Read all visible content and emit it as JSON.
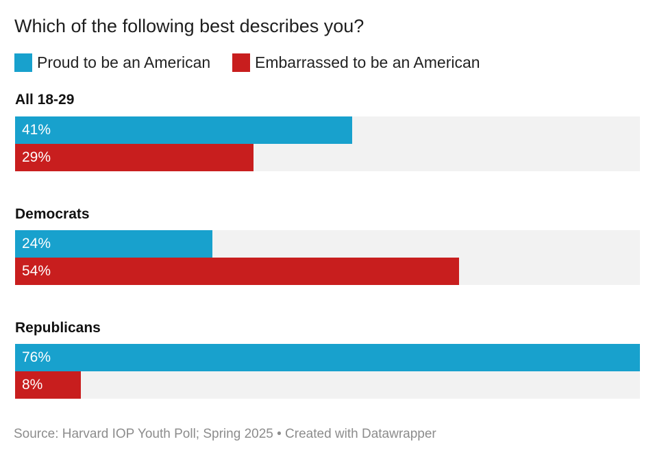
{
  "title": "Which of the following best describes you?",
  "footer": "Source: Harvard IOP Youth Poll; Spring 2025 • Created with Datawrapper",
  "colors": {
    "proud": "#18a1cd",
    "embarrassed": "#c81e1e",
    "track": "#f2f2f2"
  },
  "legend": [
    {
      "label": "Proud to be an American",
      "color": "#18a1cd"
    },
    {
      "label": "Embarrassed to be an American",
      "color": "#c81e1e"
    }
  ],
  "chart_data": {
    "type": "bar",
    "orientation": "horizontal",
    "title": "Which of the following best describes you?",
    "categories": [
      "All 18-29",
      "Democrats",
      "Republicans"
    ],
    "series": [
      {
        "name": "Proud to be an American",
        "values": [
          41,
          24,
          76
        ],
        "labels": [
          "41%",
          "24%",
          "76%"
        ]
      },
      {
        "name": "Embarrassed to be an American",
        "values": [
          29,
          54,
          8
        ],
        "labels": [
          "29%",
          "54%",
          "8%"
        ]
      }
    ],
    "xlim": [
      0,
      76
    ],
    "unit": "%",
    "grid": false,
    "legend_position": "top-left"
  }
}
